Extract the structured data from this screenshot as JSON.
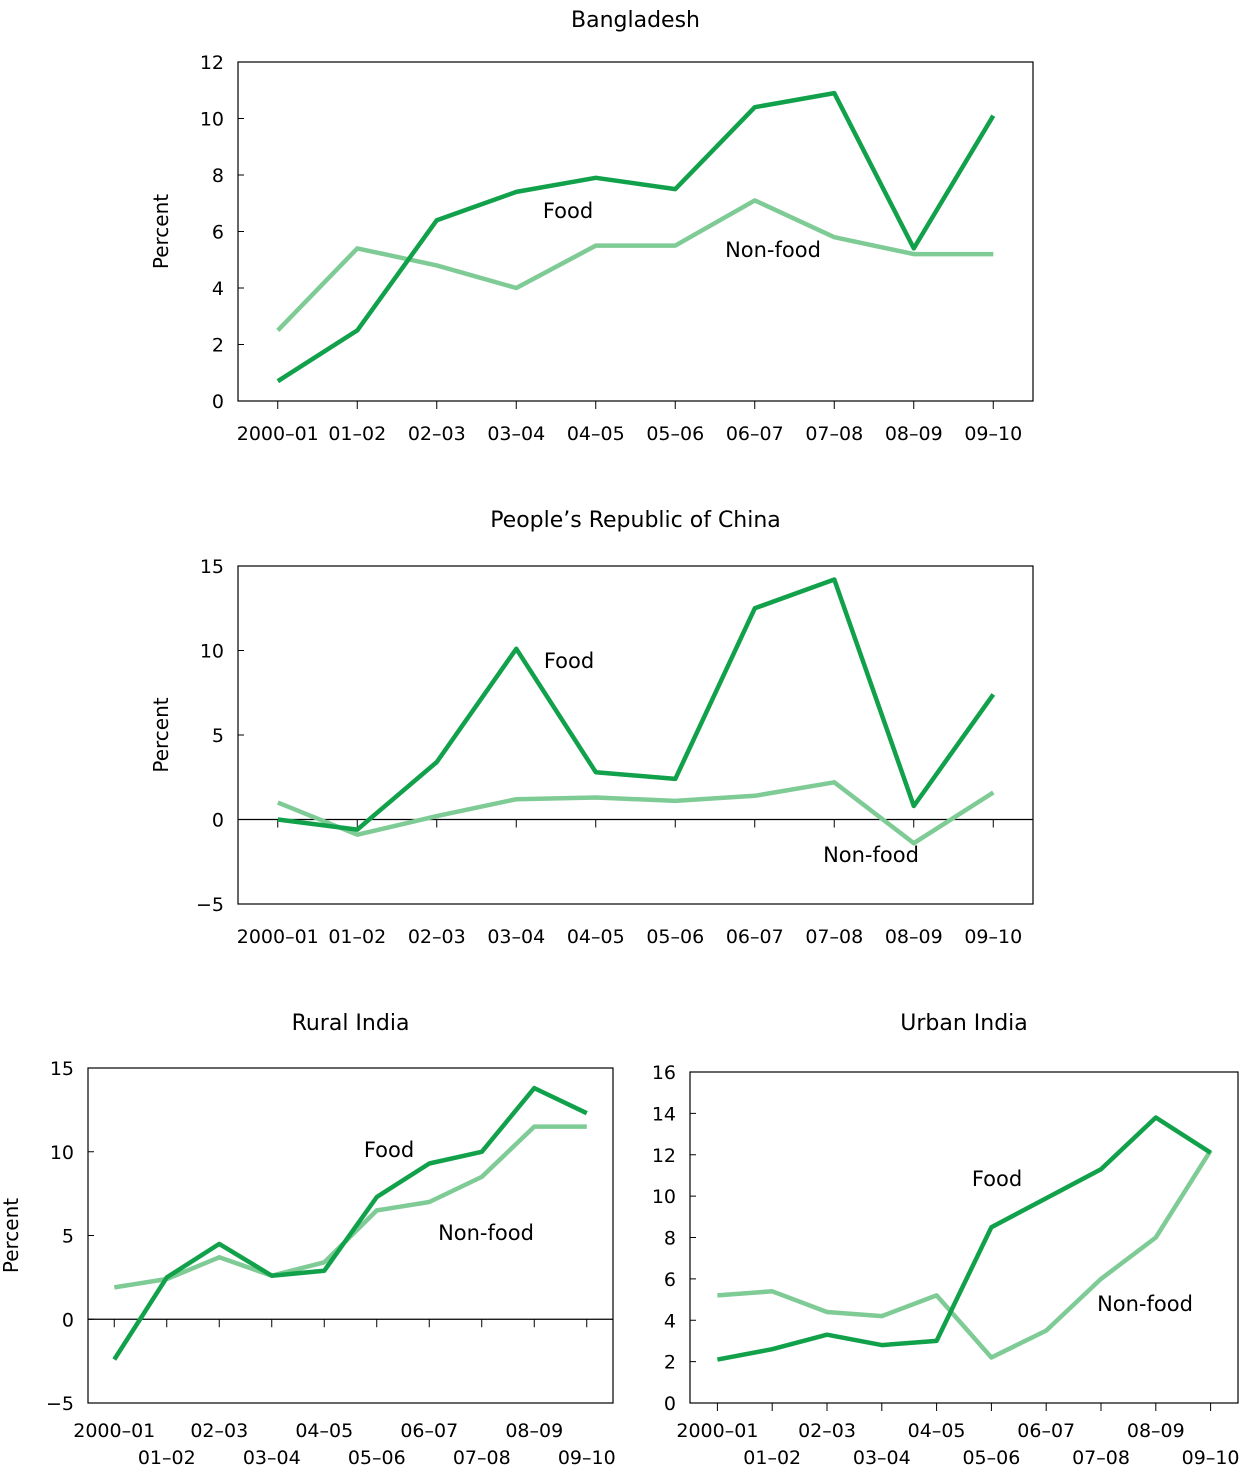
{
  "colors": {
    "food": "#12a14b",
    "nonfood": "#7fcb96",
    "axis": "#000000"
  },
  "chart_data": [
    {
      "type": "line",
      "title": "Bangladesh",
      "ylabel": "Percent",
      "ylim": [
        0,
        12
      ],
      "yticks": [
        0,
        2,
        4,
        6,
        8,
        10,
        12
      ],
      "zero_line": false,
      "categories": [
        "2000–01",
        "01–02",
        "02–03",
        "03–04",
        "04–05",
        "05–06",
        "06–07",
        "07–08",
        "08–09",
        "09–10"
      ],
      "series": [
        {
          "name": "Food",
          "values": [
            0.7,
            2.5,
            6.4,
            7.4,
            7.9,
            7.5,
            10.4,
            10.9,
            5.4,
            10.1
          ]
        },
        {
          "name": "Non-food",
          "values": [
            2.5,
            5.4,
            4.8,
            4.0,
            5.5,
            5.5,
            7.1,
            5.8,
            5.2,
            5.2
          ]
        }
      ]
    },
    {
      "type": "line",
      "title": "People’s Republic of China",
      "ylabel": "Percent",
      "ylim": [
        -5,
        15
      ],
      "yticks": [
        -5,
        0,
        5,
        10,
        15
      ],
      "zero_line": true,
      "categories": [
        "2000–01",
        "01–02",
        "02–03",
        "03–04",
        "04–05",
        "05–06",
        "06–07",
        "07–08",
        "08–09",
        "09–10"
      ],
      "series": [
        {
          "name": "Food",
          "values": [
            0.0,
            -0.6,
            3.4,
            10.1,
            2.8,
            2.4,
            12.5,
            14.2,
            0.8,
            7.4
          ]
        },
        {
          "name": "Non-food",
          "values": [
            1.0,
            -0.9,
            0.2,
            1.2,
            1.3,
            1.1,
            1.4,
            2.2,
            -1.4,
            1.6
          ]
        }
      ]
    },
    {
      "type": "line",
      "title": "Rural India",
      "ylabel": "Percent",
      "ylim": [
        -5,
        15
      ],
      "yticks": [
        -5,
        0,
        5,
        10,
        15
      ],
      "zero_line": true,
      "categories": [
        "2000–01",
        "01–02",
        "02–03",
        "03–04",
        "04–05",
        "05–06",
        "06–07",
        "07–08",
        "08–09",
        "09–10"
      ],
      "series": [
        {
          "name": "Food",
          "values": [
            -2.4,
            2.5,
            4.5,
            2.6,
            2.9,
            7.3,
            9.3,
            10.0,
            13.8,
            12.3
          ]
        },
        {
          "name": "Non-food",
          "values": [
            1.9,
            2.4,
            3.7,
            2.6,
            3.4,
            6.5,
            7.0,
            8.5,
            11.5,
            11.5
          ]
        }
      ]
    },
    {
      "type": "line",
      "title": "Urban India",
      "ylabel": "",
      "ylim": [
        0,
        16
      ],
      "yticks": [
        0,
        2,
        4,
        6,
        8,
        10,
        12,
        14,
        16
      ],
      "zero_line": false,
      "categories": [
        "2000–01",
        "01–02",
        "02–03",
        "03–04",
        "04–05",
        "05–06",
        "06–07",
        "07–08",
        "08–09",
        "09–10"
      ],
      "series": [
        {
          "name": "Food",
          "values": [
            2.1,
            2.6,
            3.3,
            2.8,
            3.0,
            8.5,
            9.9,
            11.3,
            13.8,
            12.1
          ]
        },
        {
          "name": "Non-food",
          "values": [
            5.2,
            5.4,
            4.4,
            4.2,
            5.2,
            2.2,
            3.5,
            6.0,
            8.0,
            12.2
          ]
        }
      ]
    }
  ]
}
